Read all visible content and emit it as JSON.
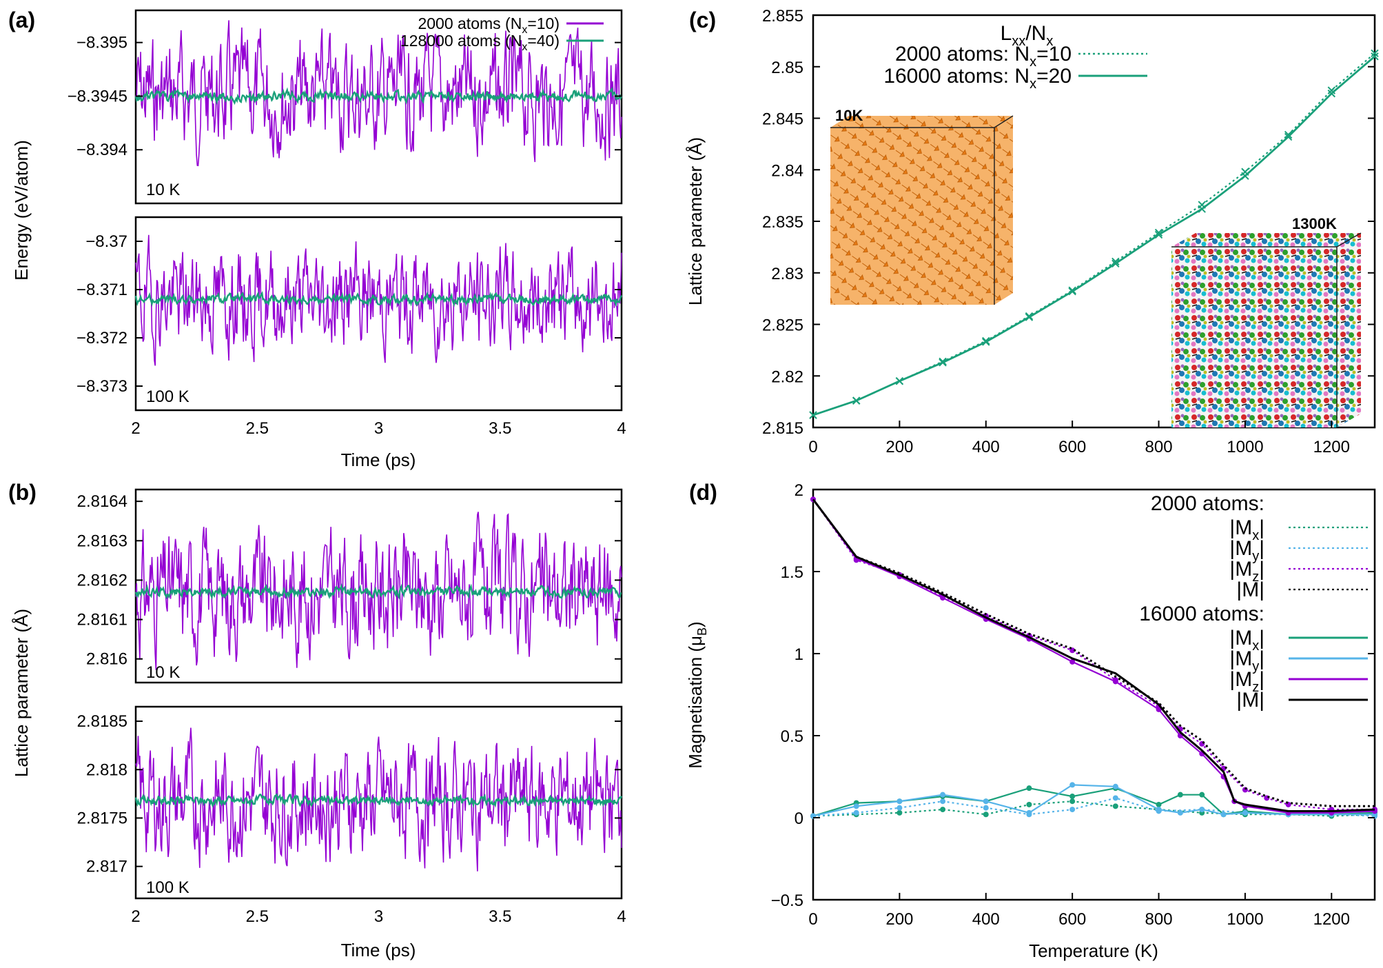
{
  "colors": {
    "purple": "#9400d3",
    "green": "#1aa07a",
    "lightblue": "#56b4e9",
    "black": "#000000",
    "orange": "#f28c28"
  },
  "chart_data": [
    {
      "id": "a",
      "panel_label": "(a)",
      "type": "line",
      "ylabel": "Energy (eV/atom)",
      "xlabel": "Time (ps)",
      "xlim": [
        2,
        4
      ],
      "xticks": [
        "2",
        "2.5",
        "3",
        "3.5",
        "4"
      ],
      "subplots": [
        {
          "temperature_label": "10 K",
          "ylim": [
            -8.3935,
            -8.3953
          ],
          "yticks": [
            "-8.395",
            "-8.3945",
            "-8.394"
          ],
          "series": [
            {
              "name": "2000 atoms (N_x=10)",
              "mean": -8.3945,
              "amplitude": 0.00045
            },
            {
              "name": "128000 atoms (N_x=40)",
              "mean": -8.3945,
              "amplitude": 4e-05
            }
          ]
        },
        {
          "temperature_label": "100 K",
          "ylim": [
            -8.3735,
            -8.3695
          ],
          "yticks": [
            "-8.37",
            "-8.371",
            "-8.372",
            "-8.373"
          ],
          "series": [
            {
              "name": "2000 atoms (N_x=10)",
              "mean": -8.3712,
              "amplitude": 0.0009
            },
            {
              "name": "128000 atoms (N_x=40)",
              "mean": -8.3712,
              "amplitude": 8e-05
            }
          ]
        }
      ],
      "legend": {
        "entry1_text": "2000 atoms (N",
        "entry1_sub": "x",
        "entry1_tail": "=10)",
        "entry2_text": "128000 atoms (N",
        "entry2_sub": "x",
        "entry2_tail": "=40)"
      }
    },
    {
      "id": "b",
      "panel_label": "(b)",
      "type": "line",
      "ylabel": "Lattice parameter (Å)",
      "xlabel": "Time (ps)",
      "xlim": [
        2,
        4
      ],
      "xticks": [
        "2",
        "2.5",
        "3",
        "3.5",
        "4"
      ],
      "subplots": [
        {
          "temperature_label": "10 K",
          "ylim": [
            2.81594,
            2.81643
          ],
          "yticks": [
            "2.8164",
            "2.8163",
            "2.8162",
            "2.8161",
            "2.816"
          ],
          "series": [
            {
              "name": "2000 atoms (N_x=10)",
              "mean": 2.81617,
              "amplitude": 0.00013
            },
            {
              "name": "128000 atoms (N_x=40)",
              "mean": 2.81617,
              "amplitude": 1e-05
            }
          ]
        },
        {
          "temperature_label": "100 K",
          "ylim": [
            2.81667,
            2.81865
          ],
          "yticks": [
            "2.8185",
            "2.818",
            "2.8175",
            "2.817"
          ],
          "series": [
            {
              "name": "2000 atoms (N_x=10)",
              "mean": 2.81768,
              "amplitude": 0.0005
            },
            {
              "name": "128000 atoms (N_x=40)",
              "mean": 2.81768,
              "amplitude": 4e-05
            }
          ]
        }
      ]
    },
    {
      "id": "c",
      "panel_label": "(c)",
      "type": "line",
      "ylabel": "Lattice parameter (Å)",
      "xlabel": "",
      "xlim": [
        0,
        1300
      ],
      "ylim": [
        2.815,
        2.855
      ],
      "xticks": [
        "0",
        "200",
        "400",
        "600",
        "800",
        "1000",
        "1200"
      ],
      "yticks": [
        "2.815",
        "2.82",
        "2.825",
        "2.83",
        "2.835",
        "2.84",
        "2.845",
        "2.85",
        "2.855"
      ],
      "legend_title": "L_xx/N_x",
      "legend_title_main": "L",
      "legend_title_sub1": "xx",
      "legend_title_mid": "/N",
      "legend_title_sub2": "x",
      "legend_entry1": "2000 atoms: N",
      "legend_entry1_sub": "x",
      "legend_entry1_tail": "=10",
      "legend_entry2": "16000 atoms: N",
      "legend_entry2_sub": "x",
      "legend_entry2_tail": "=20",
      "inset_left_label": "10K",
      "inset_right_label": "1300K",
      "series": [
        {
          "name": "2000 atoms: N_x=10",
          "style": "dotted",
          "x": [
            0,
            100,
            200,
            300,
            400,
            500,
            600,
            700,
            800,
            900,
            1000,
            1100,
            1200,
            1300
          ],
          "y": [
            2.8162,
            2.8176,
            2.8195,
            2.8214,
            2.8234,
            2.8258,
            2.8283,
            2.8311,
            2.8339,
            2.8366,
            2.8398,
            2.8434,
            2.8477,
            2.8513
          ]
        },
        {
          "name": "16000 atoms: N_x=20",
          "style": "solid",
          "x": [
            0,
            100,
            200,
            300,
            400,
            500,
            600,
            700,
            800,
            900,
            1000,
            1100,
            1200,
            1300
          ],
          "y": [
            2.8162,
            2.8176,
            2.8195,
            2.8213,
            2.8233,
            2.8257,
            2.8282,
            2.8309,
            2.8337,
            2.8362,
            2.8394,
            2.8432,
            2.8474,
            2.851
          ]
        }
      ]
    },
    {
      "id": "d",
      "panel_label": "(d)",
      "type": "line",
      "ylabel": "Magnetisation (μB)",
      "ylabel_main": "Magnetisation (μ",
      "ylabel_sub": "B",
      "ylabel_tail": ")",
      "xlabel": "Temperature (K)",
      "xlim": [
        0,
        1300
      ],
      "ylim": [
        -0.5,
        2
      ],
      "xticks": [
        "0",
        "200",
        "400",
        "600",
        "800",
        "1000",
        "1200"
      ],
      "yticks": [
        "2",
        "1.5",
        "1",
        "0.5",
        "0",
        "-0.5"
      ],
      "legend_group1": "2000 atoms:",
      "legend_group2": "16000 atoms:",
      "legend_labels": [
        "|Mx|",
        "|My|",
        "|Mz|",
        "|M|"
      ],
      "legend_label_parts": [
        {
          "main": "|M",
          "sub": "x",
          "tail": "|"
        },
        {
          "main": "|M",
          "sub": "y",
          "tail": "|"
        },
        {
          "main": "|M",
          "sub": "z",
          "tail": "|"
        },
        {
          "main": "|M|",
          "sub": "",
          "tail": ""
        }
      ],
      "series": [
        {
          "name": "2000 atoms |Mx|",
          "style": "dotted",
          "color": "green",
          "x": [
            0,
            100,
            200,
            300,
            400,
            500,
            600,
            700,
            800,
            900,
            1000,
            1100,
            1200,
            1300
          ],
          "y": [
            0.01,
            0.02,
            0.03,
            0.05,
            0.02,
            0.08,
            0.1,
            0.07,
            0.05,
            0.03,
            0.02,
            0.02,
            0.01,
            0.02
          ]
        },
        {
          "name": "2000 atoms |My|",
          "style": "dotted",
          "color": "lightblue",
          "x": [
            0,
            100,
            200,
            300,
            400,
            500,
            600,
            700,
            800,
            900,
            1000,
            1100,
            1200,
            1300
          ],
          "y": [
            0.01,
            0.03,
            0.06,
            0.1,
            0.06,
            0.02,
            0.05,
            0.12,
            0.04,
            0.05,
            0.03,
            0.02,
            0.02,
            0.01
          ]
        },
        {
          "name": "2000 atoms |Mz|",
          "style": "dotted",
          "color": "purple",
          "x": [
            0,
            100,
            200,
            300,
            400,
            500,
            600,
            700,
            800,
            850,
            900,
            950,
            1000,
            1050,
            1100,
            1200,
            1300
          ],
          "y": [
            1.94,
            1.57,
            1.48,
            1.35,
            1.23,
            1.11,
            1.02,
            0.84,
            0.68,
            0.54,
            0.45,
            0.3,
            0.17,
            0.12,
            0.08,
            0.05,
            0.05
          ]
        },
        {
          "name": "2000 atoms |M|",
          "style": "dotted",
          "color": "black",
          "x": [
            0,
            100,
            200,
            300,
            400,
            500,
            600,
            700,
            800,
            850,
            900,
            950,
            1000,
            1050,
            1100,
            1200,
            1300
          ],
          "y": [
            1.94,
            1.59,
            1.49,
            1.37,
            1.24,
            1.12,
            1.03,
            0.86,
            0.7,
            0.56,
            0.47,
            0.32,
            0.18,
            0.13,
            0.09,
            0.07,
            0.07
          ]
        },
        {
          "name": "16000 atoms |Mx|",
          "style": "solid",
          "color": "green",
          "x": [
            0,
            100,
            200,
            300,
            400,
            500,
            600,
            700,
            800,
            850,
            900,
            950,
            1000,
            1100,
            1200,
            1300
          ],
          "y": [
            0.01,
            0.09,
            0.1,
            0.13,
            0.1,
            0.18,
            0.13,
            0.18,
            0.08,
            0.14,
            0.14,
            0.02,
            0.04,
            0.02,
            0.02,
            0.03
          ]
        },
        {
          "name": "16000 atoms |My|",
          "style": "solid",
          "color": "lightblue",
          "x": [
            0,
            100,
            200,
            300,
            400,
            500,
            600,
            700,
            800,
            850,
            900,
            950,
            1000,
            1100,
            1200,
            1300
          ],
          "y": [
            0.01,
            0.07,
            0.1,
            0.14,
            0.1,
            0.03,
            0.2,
            0.19,
            0.05,
            0.03,
            0.05,
            0.02,
            0.03,
            0.02,
            0.02,
            0.02
          ]
        },
        {
          "name": "16000 atoms |Mz|",
          "style": "solid",
          "color": "purple",
          "x": [
            0,
            100,
            200,
            300,
            400,
            500,
            600,
            700,
            800,
            850,
            900,
            950,
            975,
            1000,
            1100,
            1200,
            1300
          ],
          "y": [
            1.94,
            1.58,
            1.47,
            1.34,
            1.21,
            1.09,
            0.95,
            0.83,
            0.66,
            0.5,
            0.39,
            0.25,
            0.1,
            0.07,
            0.03,
            0.03,
            0.04
          ]
        },
        {
          "name": "16000 atoms |M|",
          "style": "solid",
          "color": "black",
          "x": [
            0,
            100,
            200,
            300,
            400,
            500,
            600,
            700,
            800,
            850,
            900,
            950,
            975,
            1000,
            1100,
            1200,
            1300
          ],
          "y": [
            1.94,
            1.59,
            1.48,
            1.36,
            1.22,
            1.1,
            0.97,
            0.88,
            0.69,
            0.52,
            0.41,
            0.28,
            0.1,
            0.08,
            0.04,
            0.04,
            0.05
          ]
        }
      ]
    }
  ]
}
